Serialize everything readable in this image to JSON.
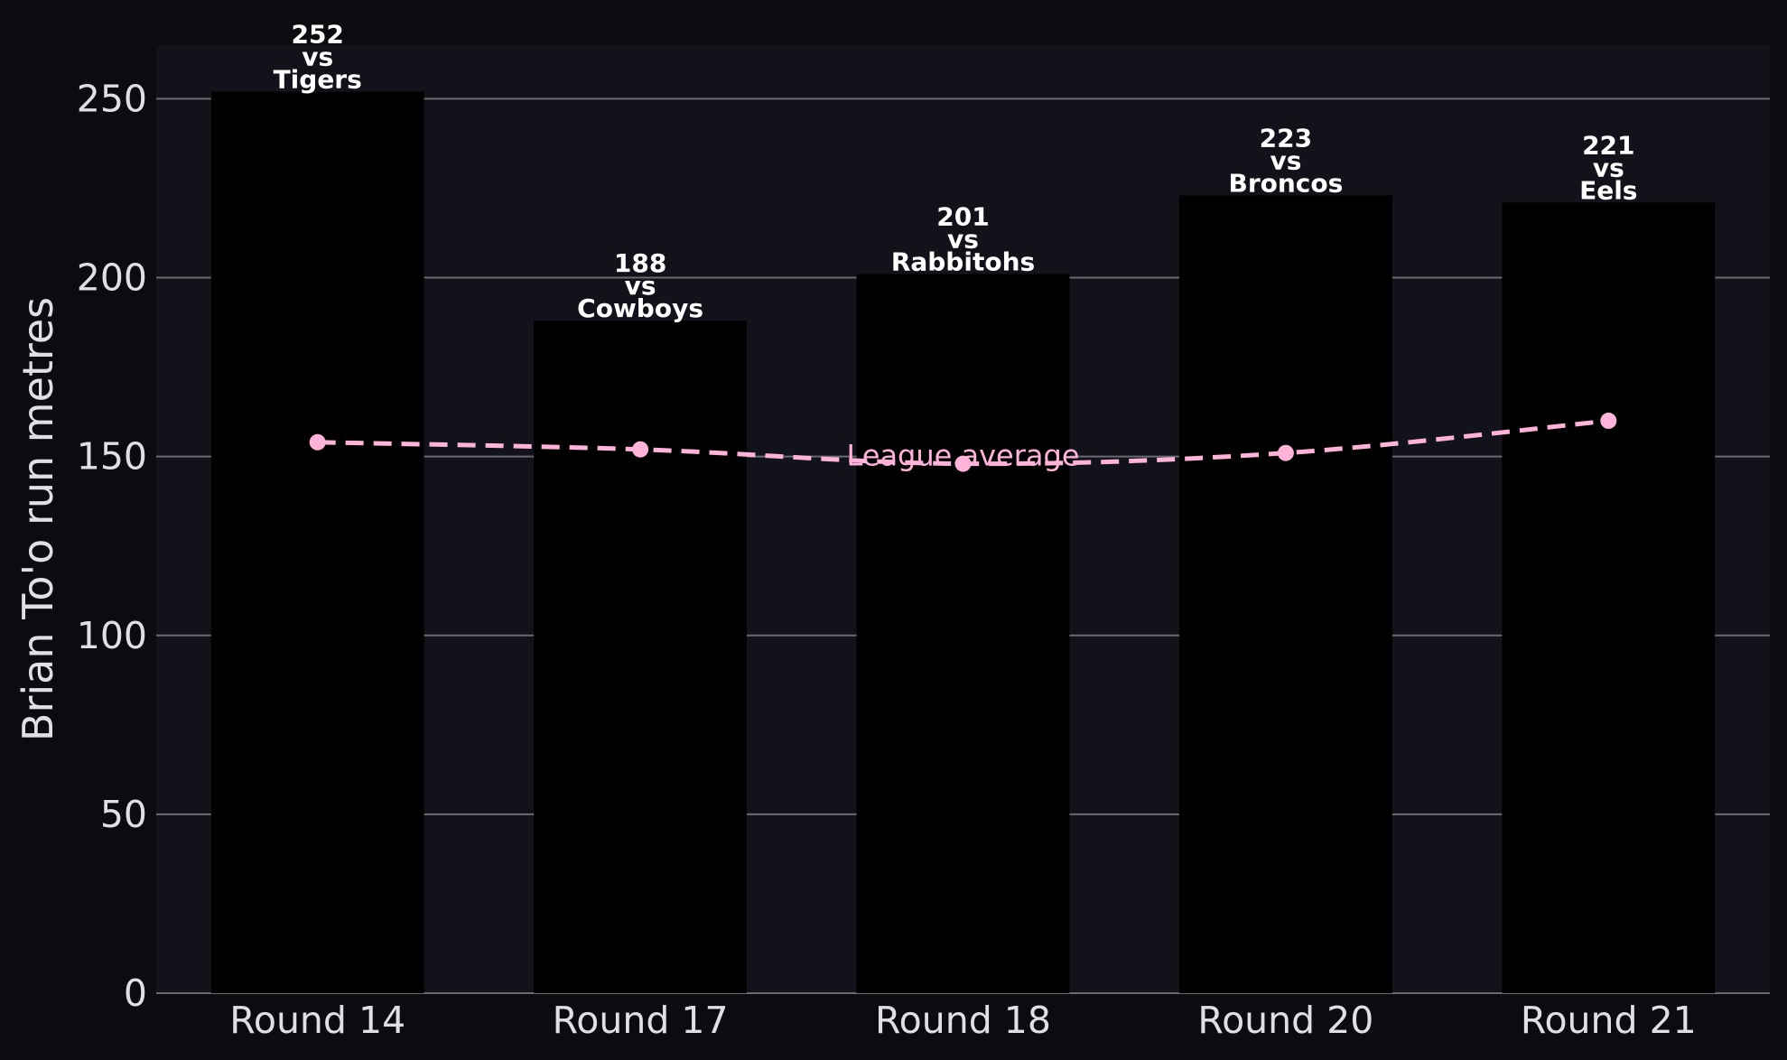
{
  "colors": {
    "background": "#0c0c10",
    "plot_background": "#12131a",
    "bar": "#000000",
    "bar_label": "#ffffff",
    "average_line": "#ffb3d9",
    "grid": "#6a6a70",
    "text": "#e0e0e4"
  },
  "chart_data": {
    "type": "bar",
    "categories": [
      "Round 14",
      "Round 17",
      "Round 18",
      "Round 20",
      "Round 21"
    ],
    "values": [
      252,
      188,
      201,
      223,
      221
    ],
    "bar_labels": [
      [
        "252",
        "vs",
        "Tigers"
      ],
      [
        "188",
        "vs",
        "Cowboys"
      ],
      [
        "201",
        "vs",
        "Rabbitohs"
      ],
      [
        "223",
        "vs",
        "Broncos"
      ],
      [
        "221",
        "vs",
        "Eels"
      ]
    ],
    "series": [
      {
        "name": "League average",
        "type": "line",
        "style": "dashed",
        "values": [
          154,
          152,
          148,
          151,
          160
        ]
      }
    ],
    "average_label": "League average",
    "title": "",
    "xlabel": "",
    "ylabel": "Brian To'o run metres",
    "ylim": [
      0,
      265
    ],
    "yticks": [
      0,
      50,
      100,
      150,
      200,
      250
    ],
    "grid": "horizontal",
    "legend": "none"
  }
}
